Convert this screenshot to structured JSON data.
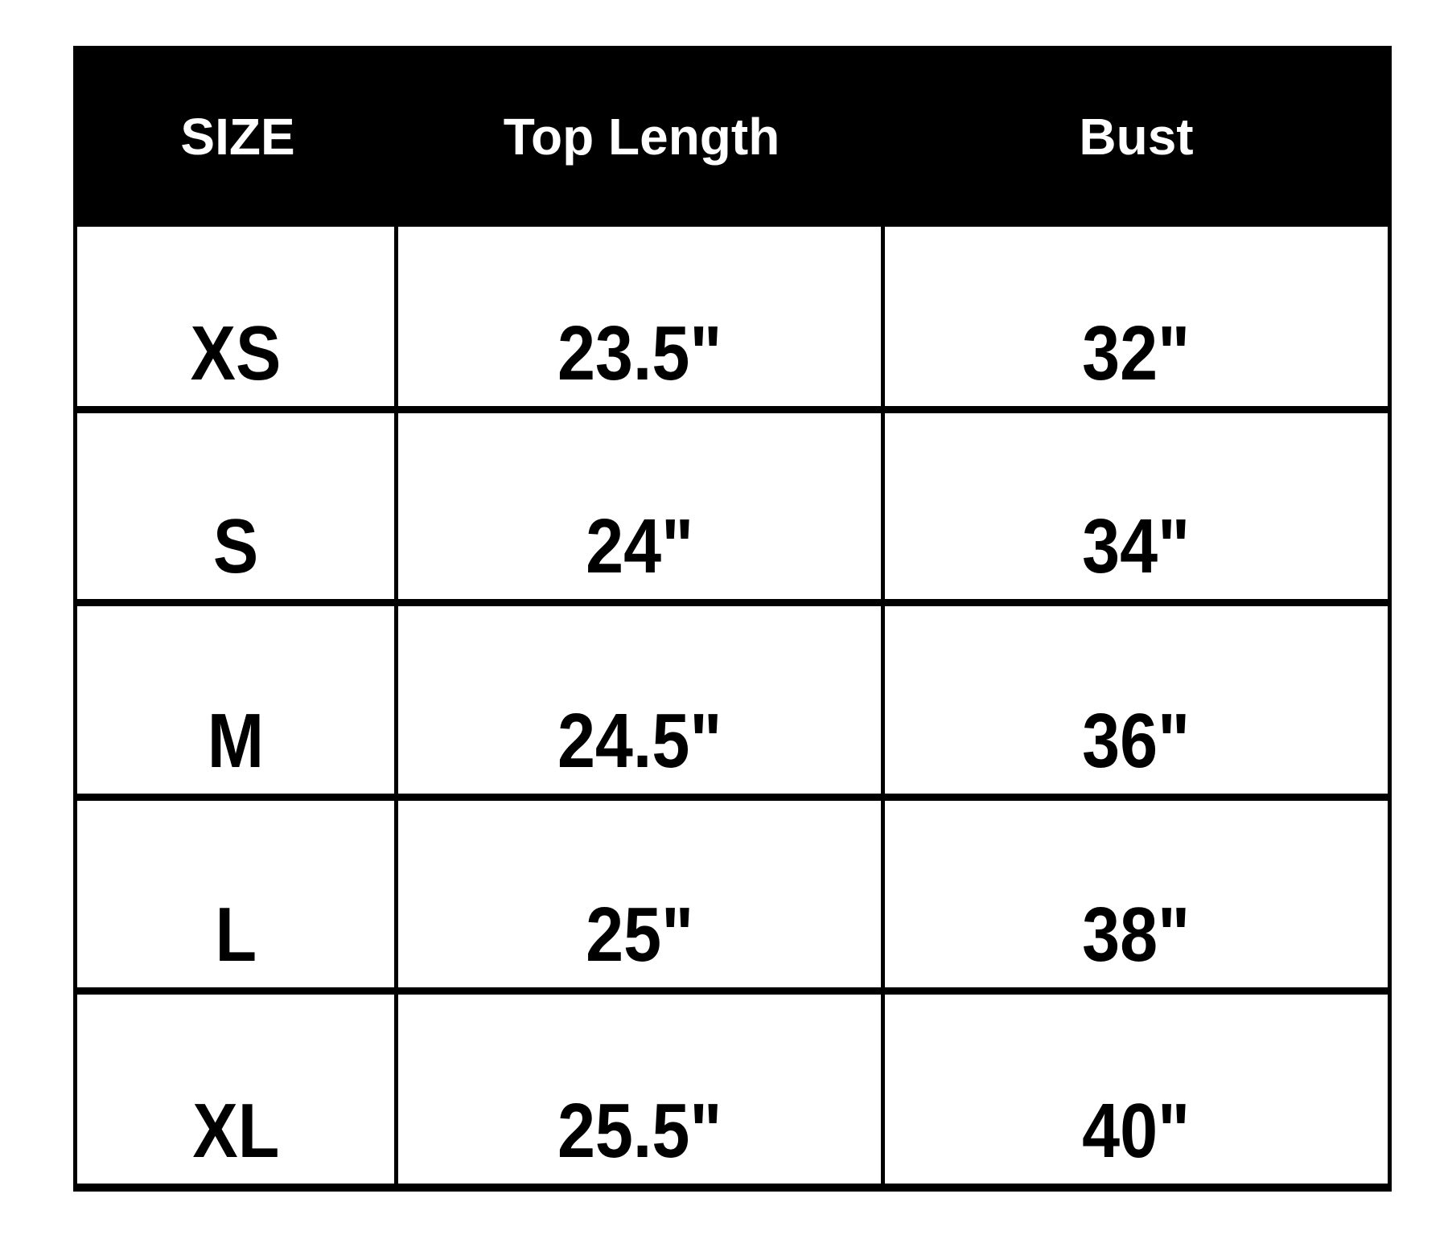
{
  "chart_data": {
    "type": "table",
    "columns": [
      "SIZE",
      "Top Length",
      "Bust"
    ],
    "rows": [
      [
        "XS",
        "23.5\"",
        "32\""
      ],
      [
        "S",
        "24\"",
        "34\""
      ],
      [
        "M",
        "24.5\"",
        "36\""
      ],
      [
        "L",
        "25\"",
        "38\""
      ],
      [
        "XL",
        "25.5\"",
        "40\""
      ]
    ],
    "layout": {
      "header_position": "top",
      "grid": "on",
      "column_alignment": "center"
    }
  },
  "colors": {
    "header_bg": "#000000",
    "header_text": "#ffffff",
    "row_bg": "#ffffff",
    "cell_text": "#000000",
    "border": "#000000",
    "page_bg": "#ffffff"
  }
}
